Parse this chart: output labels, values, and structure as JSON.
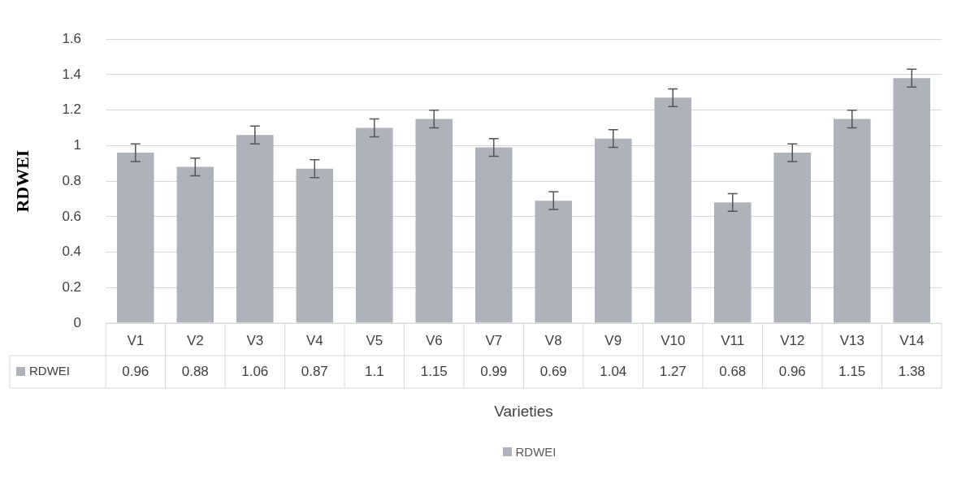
{
  "chart_data": {
    "type": "bar",
    "xlabel": "Varieties",
    "ylabel": "RDWEI",
    "categories": [
      "V1",
      "V2",
      "V3",
      "V4",
      "V5",
      "V6",
      "V7",
      "V8",
      "V9",
      "V10",
      "V11",
      "V12",
      "V13",
      "V14"
    ],
    "series": [
      {
        "name": "RDWEI",
        "color": "#aeb3bb",
        "values": [
          0.96,
          0.88,
          1.06,
          0.87,
          1.1,
          1.15,
          0.99,
          0.69,
          1.04,
          1.27,
          0.68,
          0.96,
          1.15,
          1.38
        ],
        "errors": [
          0.05,
          0.05,
          0.05,
          0.05,
          0.05,
          0.05,
          0.05,
          0.05,
          0.05,
          0.05,
          0.05,
          0.05,
          0.05,
          0.05
        ]
      }
    ],
    "ylim": [
      0,
      1.6
    ],
    "yticks": [
      0,
      0.2,
      0.4,
      0.6,
      0.8,
      1,
      1.2,
      1.4,
      1.6
    ],
    "grid": "y",
    "data_labels": true,
    "legend": "bottom"
  }
}
